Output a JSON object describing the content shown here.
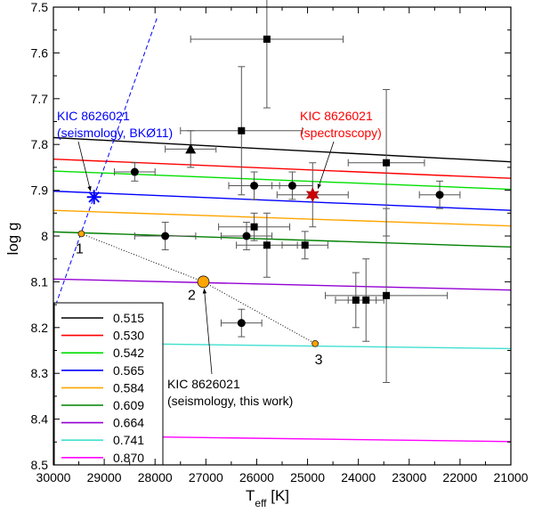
{
  "chart_data": {
    "type": "scatter",
    "xlabel": "T",
    "xlabel_sub": "eff",
    "xlabel_unit": " [K]",
    "ylabel": "log g",
    "xlim": [
      30000,
      21000
    ],
    "ylim": [
      8.5,
      7.5
    ],
    "x_ticks": [
      30000,
      29000,
      28000,
      27000,
      26000,
      25000,
      24000,
      23000,
      22000,
      21000
    ],
    "y_ticks": [
      "7.5",
      "7.6",
      "7.7",
      "7.8",
      "7.9",
      "8",
      "8.1",
      "8.2",
      "8.3",
      "8.4",
      "8.5"
    ],
    "y_tick_values": [
      7.5,
      7.6,
      7.7,
      7.8,
      7.9,
      8.0,
      8.1,
      8.2,
      8.3,
      8.4,
      8.5
    ],
    "legend": {
      "placement": "bottom-left",
      "entries": [
        {
          "label": "0.515",
          "color": "#000000"
        },
        {
          "label": "0.530",
          "color": "#ff0000"
        },
        {
          "label": "0.542",
          "color": "#00e000"
        },
        {
          "label": "0.565",
          "color": "#0000ff"
        },
        {
          "label": "0.584",
          "color": "#ffa500"
        },
        {
          "label": "0.609",
          "color": "#008000"
        },
        {
          "label": "0.664",
          "color": "#9400d3"
        },
        {
          "label": "0.741",
          "color": "#40e0d0"
        },
        {
          "label": "0.870",
          "color": "#ff00ff"
        }
      ]
    },
    "tracks": [
      {
        "name": "0.515",
        "color": "#000000",
        "x": [
          30000,
          21000
        ],
        "y": [
          7.785,
          7.838
        ]
      },
      {
        "name": "0.530",
        "color": "#ff0000",
        "x": [
          30000,
          21000
        ],
        "y": [
          7.832,
          7.874
        ]
      },
      {
        "name": "0.542",
        "color": "#00e000",
        "x": [
          30000,
          21000
        ],
        "y": [
          7.858,
          7.898
        ]
      },
      {
        "name": "0.565",
        "color": "#0000ff",
        "x": [
          30000,
          21000
        ],
        "y": [
          7.902,
          7.944
        ]
      },
      {
        "name": "0.584",
        "color": "#ffa500",
        "x": [
          30000,
          21000
        ],
        "y": [
          7.944,
          7.978
        ]
      },
      {
        "name": "0.609",
        "color": "#008000",
        "x": [
          30000,
          21000
        ],
        "y": [
          7.991,
          8.024
        ]
      },
      {
        "name": "0.664",
        "color": "#9400d3",
        "x": [
          30000,
          21000
        ],
        "y": [
          8.094,
          8.118
        ]
      },
      {
        "name": "0.741",
        "color": "#40e0d0",
        "x": [
          30000,
          21000
        ],
        "y": [
          8.233,
          8.246
        ]
      },
      {
        "name": "0.870",
        "color": "#ff00ff",
        "x": [
          30000,
          21000
        ],
        "y": [
          8.436,
          8.449
        ]
      }
    ],
    "circles": [
      {
        "x": 28400,
        "y": 7.86,
        "xerr": 400,
        "yerr": 0.02
      },
      {
        "x": 27800,
        "y": 8.0,
        "xerr": 600,
        "yerr": 0.03
      },
      {
        "x": 26200,
        "y": 8.0,
        "xerr": 500,
        "yerr": 0.03
      },
      {
        "x": 26050,
        "y": 7.89,
        "xerr": 500,
        "yerr": 0.03
      },
      {
        "x": 25300,
        "y": 7.89,
        "xerr": 400,
        "yerr": 0.03
      },
      {
        "x": 22400,
        "y": 7.91,
        "xerr": 400,
        "yerr": 0.03
      },
      {
        "x": 26300,
        "y": 8.19,
        "xerr": 400,
        "yerr": 0.03
      }
    ],
    "squares": [
      {
        "x": 25800,
        "y": 7.57,
        "xerr": 1500,
        "yerr": [
          0.15,
          0.15
        ]
      },
      {
        "x": 26300,
        "y": 7.77,
        "xerr": 1200,
        "yerr": [
          0.14,
          0.14
        ]
      },
      {
        "x": 23450,
        "y": 7.84,
        "xerr": 750,
        "yerr": [
          0.16,
          0.16
        ]
      },
      {
        "x": 26050,
        "y": 7.98,
        "xerr": 700,
        "yerr": [
          0.03,
          0.03
        ]
      },
      {
        "x": 25800,
        "y": 8.02,
        "xerr": 600,
        "yerr": [
          0.07,
          0.07
        ]
      },
      {
        "x": 25050,
        "y": 8.02,
        "xerr": 450,
        "yerr": [
          0.03,
          0.03
        ]
      },
      {
        "x": 24050,
        "y": 8.14,
        "xerr": 400,
        "yerr": [
          0.06,
          0.06
        ]
      },
      {
        "x": 23850,
        "y": 8.14,
        "xerr": 350,
        "yerr": [
          0.09,
          0.09
        ]
      },
      {
        "x": 23450,
        "y": 8.13,
        "xerr": 1200,
        "yerr": [
          0.19,
          0.19
        ]
      }
    ],
    "triangles": [
      {
        "x": 27300,
        "y": 7.81,
        "xerr": 500,
        "yerr": 0.04
      }
    ],
    "blue_star": {
      "x": 29200,
      "y": 7.915,
      "color": "#0000ff"
    },
    "red_star": {
      "x": 24900,
      "y": 7.91,
      "xerr": 700,
      "yerr": 0.07,
      "color": "#cc0000"
    },
    "seismology_points": [
      {
        "label": "1",
        "x": 29450,
        "y": 7.995,
        "size": "small"
      },
      {
        "label": "2",
        "x": 27050,
        "y": 8.1,
        "size": "large"
      },
      {
        "label": "3",
        "x": 24850,
        "y": 8.235,
        "size": "small"
      }
    ],
    "dashed_blue_line": {
      "x": [
        30000,
        27950
      ],
      "y": [
        8.165,
        7.52
      ],
      "color": "#0000ff"
    },
    "annotations": {
      "blue_line1": "KIC 8626021",
      "blue_line2": "(seismology, BKØ11)",
      "red_line1": "KIC 8626021",
      "red_line2": "(spectroscopy)",
      "black_line1": "KIC 8626021",
      "black_line2": "(seismology, this work)",
      "blue_color": "#0000ff",
      "red_color": "#ff0000",
      "orange_color": "#ffa500"
    }
  }
}
